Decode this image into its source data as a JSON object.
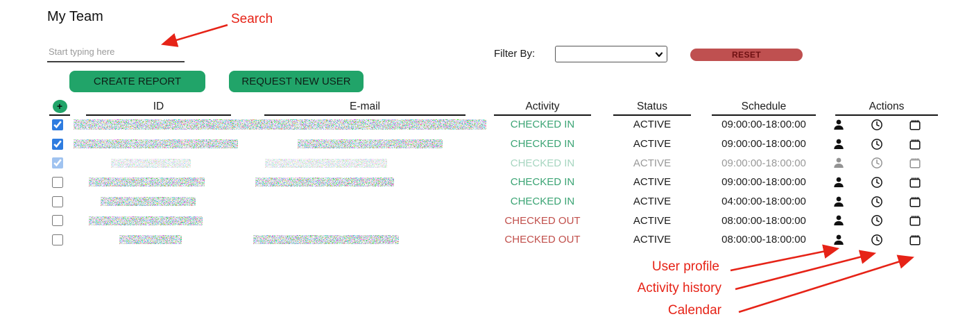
{
  "header": {
    "title": "My Team"
  },
  "search": {
    "placeholder": "Start typing here"
  },
  "toolbar": {
    "create_report_label": "CREATE REPORT",
    "request_new_user_label": "REQUEST NEW USER",
    "button_color": "#21a469"
  },
  "filter": {
    "label": "Filter By:",
    "selected_value": "",
    "reset_label": "RESET",
    "reset_color": "#bf5050"
  },
  "annotations": {
    "color": "#e62317",
    "search": "Search",
    "user_profile": "User profile",
    "activity_history": "Activity history",
    "calendar": "Calendar"
  },
  "table": {
    "add_button_label": "+",
    "columns": [
      "ID",
      "E-mail",
      "Activity",
      "Status",
      "Schedule",
      "Actions"
    ],
    "action_icons": [
      "user-icon",
      "clock-icon",
      "calendar-icon"
    ],
    "colors": {
      "checked_in": "#3ba474",
      "checked_out": "#c14f4b",
      "checkbox_accent": "#2e7ce0"
    },
    "rows": [
      {
        "checked": true,
        "faded": false,
        "id_redacted": true,
        "email_redacted": true,
        "activity": "CHECKED IN",
        "status": "ACTIVE",
        "schedule": "09:00:00-18:00:00"
      },
      {
        "checked": true,
        "faded": false,
        "id_redacted": true,
        "email_redacted": true,
        "activity": "CHECKED IN",
        "status": "ACTIVE",
        "schedule": "09:00:00-18:00:00"
      },
      {
        "checked": true,
        "faded": true,
        "id_redacted": true,
        "email_redacted": true,
        "activity": "CHECKED IN",
        "status": "ACTIVE",
        "schedule": "09:00:00-18:00:00"
      },
      {
        "checked": false,
        "faded": false,
        "id_redacted": true,
        "email_redacted": true,
        "activity": "CHECKED IN",
        "status": "ACTIVE",
        "schedule": "09:00:00-18:00:00"
      },
      {
        "checked": false,
        "faded": false,
        "id_redacted": true,
        "email_redacted": false,
        "activity": "CHECKED IN",
        "status": "ACTIVE",
        "schedule": "04:00:00-18:00:00"
      },
      {
        "checked": false,
        "faded": false,
        "id_redacted": true,
        "email_redacted": false,
        "activity": "CHECKED OUT",
        "status": "ACTIVE",
        "schedule": "08:00:00-18:00:00"
      },
      {
        "checked": false,
        "faded": false,
        "id_redacted": true,
        "email_redacted": true,
        "activity": "CHECKED OUT",
        "status": "ACTIVE",
        "schedule": "08:00:00-18:00:00"
      }
    ]
  }
}
